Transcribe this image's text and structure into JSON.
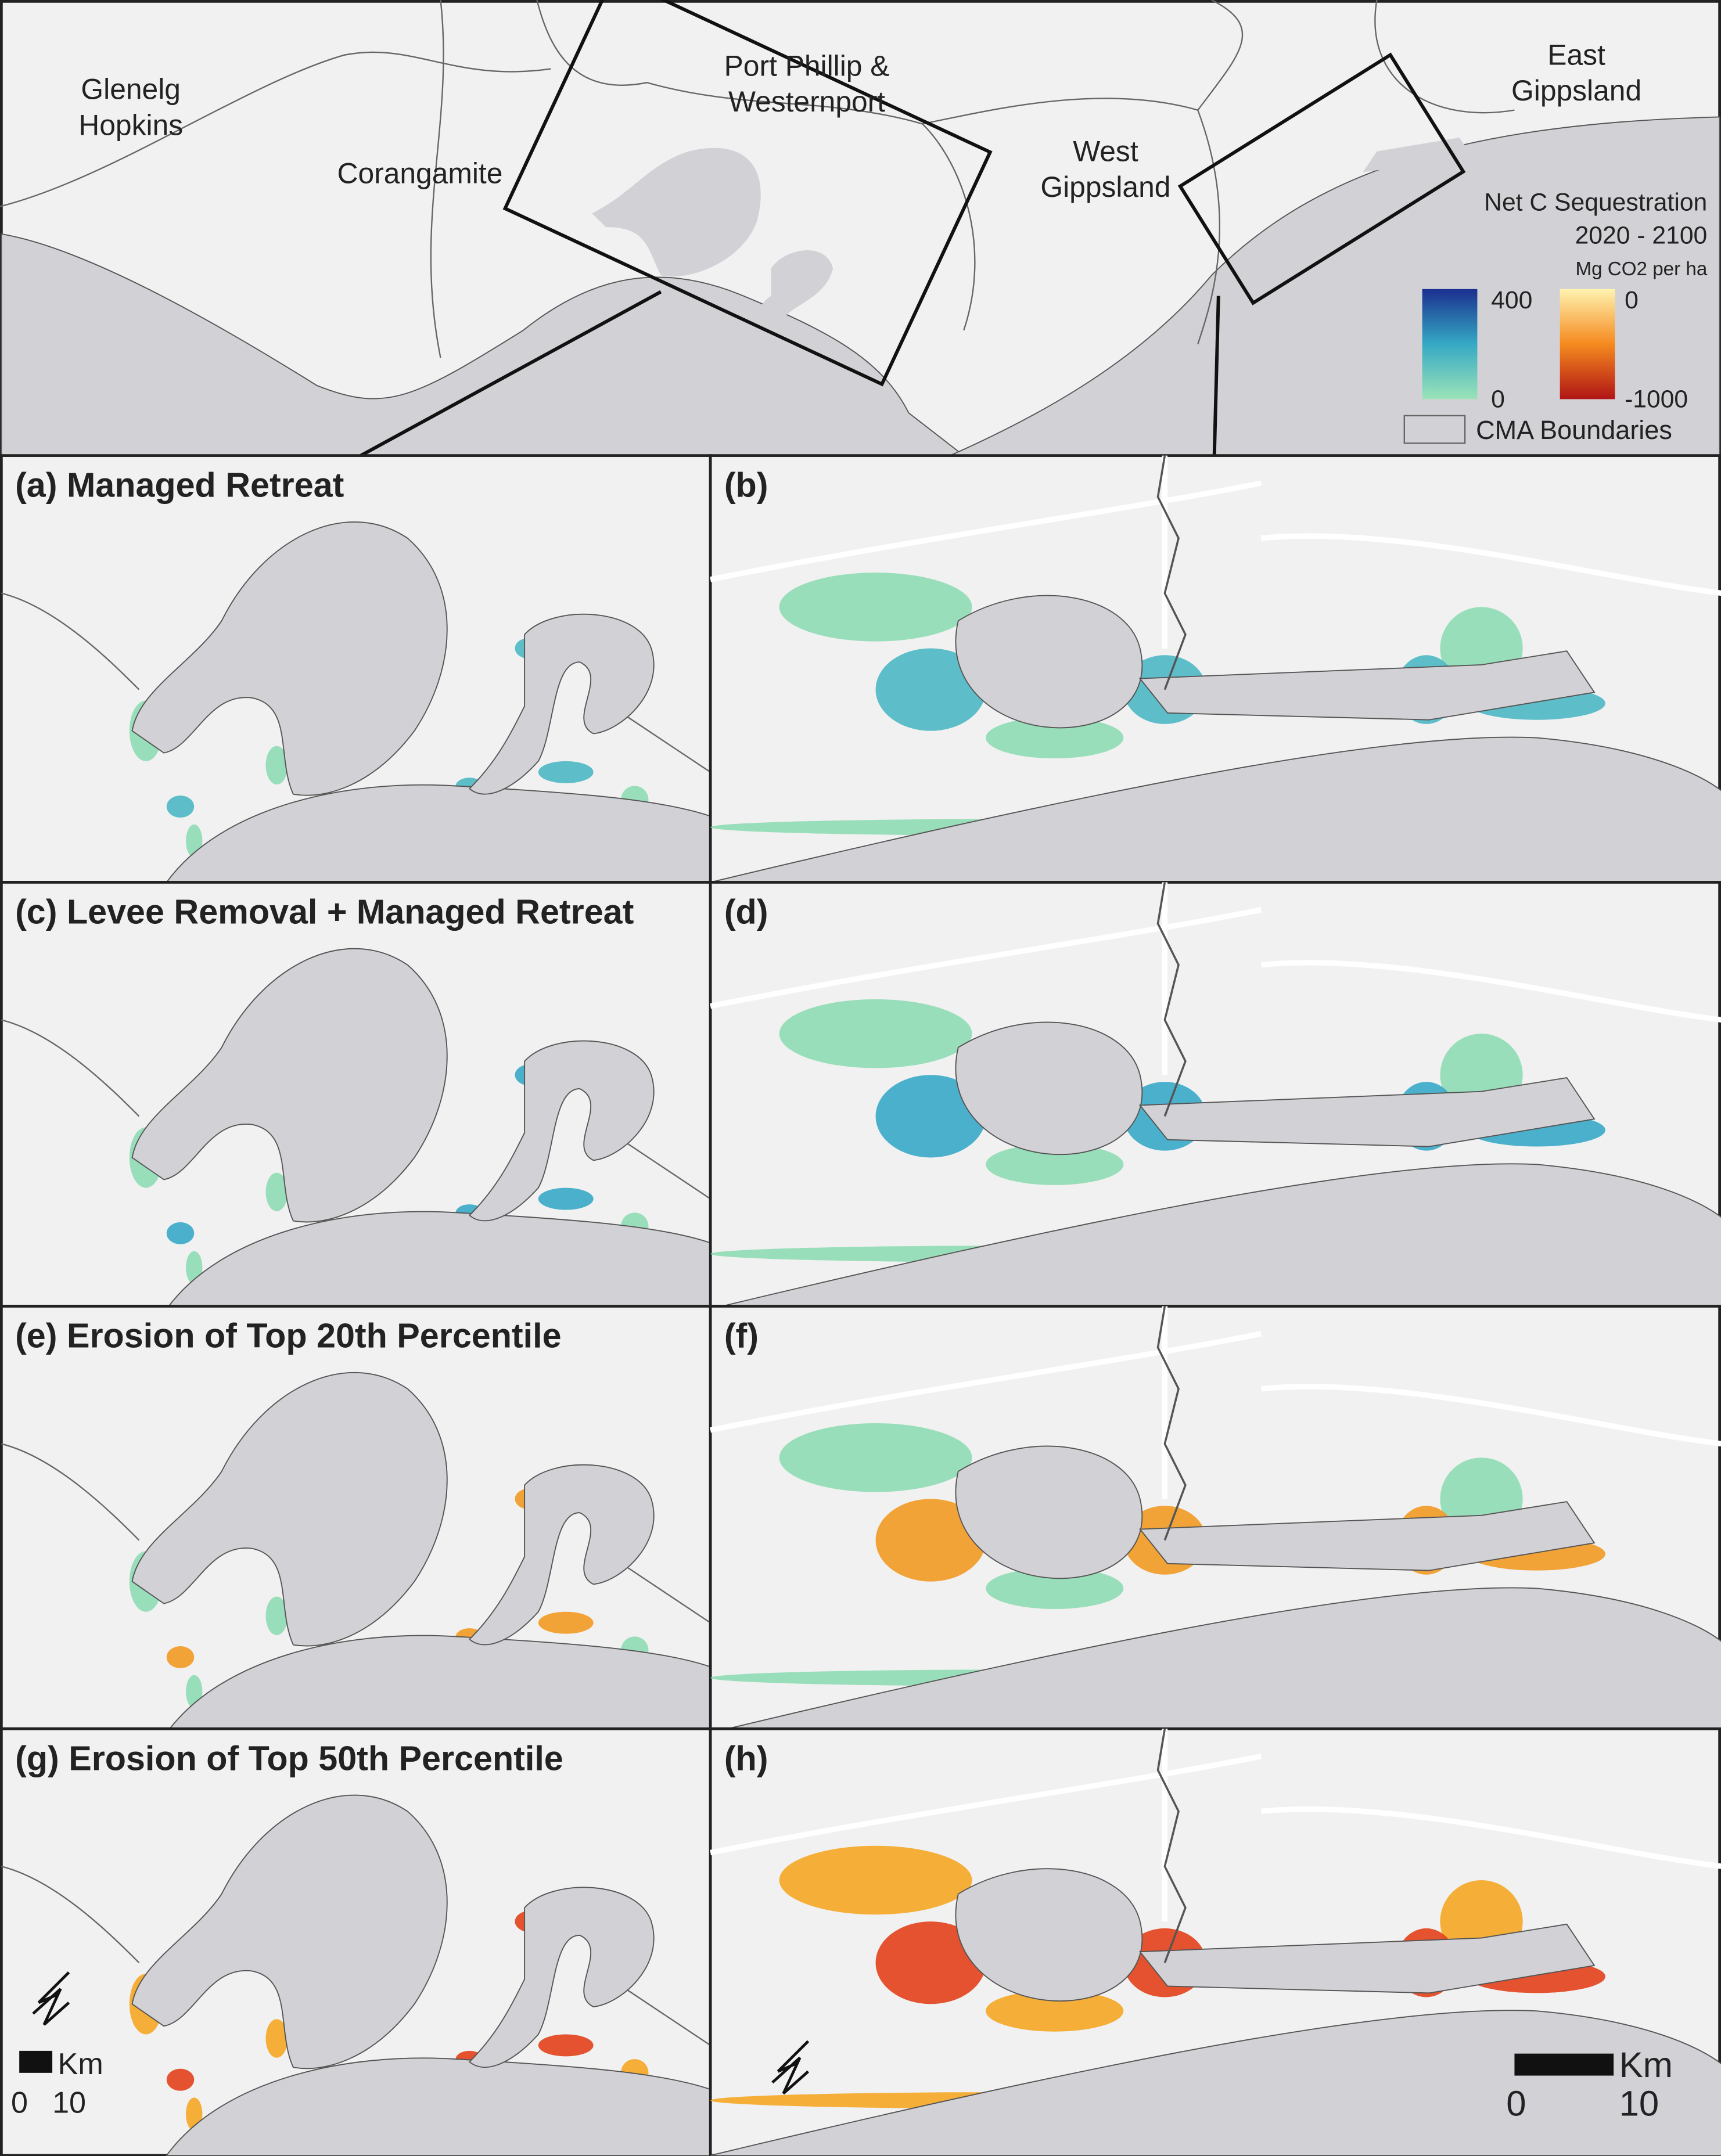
{
  "overview": {
    "regions": [
      {
        "lines": [
          "Glenelg",
          "Hopkins"
        ]
      },
      {
        "lines": [
          "Corangamite"
        ]
      },
      {
        "lines": [
          "Port Phillip &",
          "Westernport"
        ]
      },
      {
        "lines": [
          "West",
          "Gippsland"
        ]
      },
      {
        "lines": [
          "East",
          "Gippsland"
        ]
      }
    ]
  },
  "legend": {
    "title": [
      "Net C Sequestration",
      "2020 - 2100"
    ],
    "unit": "Mg CO2 per ha",
    "gain": {
      "max": 400,
      "min": 0
    },
    "loss": {
      "max": 0,
      "min": -1000
    },
    "boundary": "CMA Boundaries"
  },
  "panels": [
    {
      "label": "(a) Managed Retreat"
    },
    {
      "label": "(b)"
    },
    {
      "label": "(c) Levee Removal + Managed Retreat"
    },
    {
      "label": "(d)"
    },
    {
      "label": "(e) Erosion of Top 20th Percentile"
    },
    {
      "label": "(f)"
    },
    {
      "label": "(g) Erosion of Top 50th Percentile"
    },
    {
      "label": "(h)"
    }
  ],
  "scale_bars": [
    {
      "unit": "Km",
      "ticks": [
        0,
        10
      ]
    },
    {
      "unit": "Km",
      "ticks": [
        0,
        10
      ]
    }
  ]
}
